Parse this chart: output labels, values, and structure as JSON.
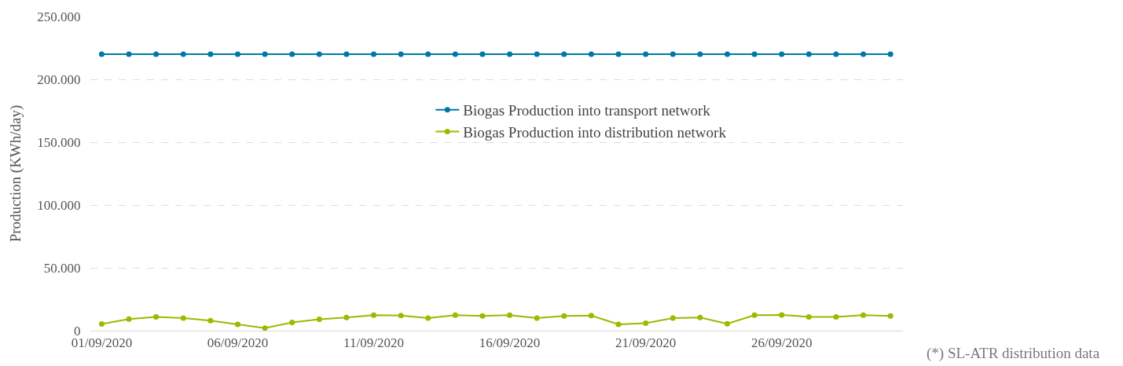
{
  "chart_data": {
    "type": "line",
    "ylabel": "Production (KWh/day)",
    "x": [
      "2020-09-01",
      "2020-09-02",
      "2020-09-03",
      "2020-09-04",
      "2020-09-05",
      "2020-09-06",
      "2020-09-07",
      "2020-09-08",
      "2020-09-09",
      "2020-09-10",
      "2020-09-11",
      "2020-09-12",
      "2020-09-13",
      "2020-09-14",
      "2020-09-15",
      "2020-09-16",
      "2020-09-17",
      "2020-09-18",
      "2020-09-19",
      "2020-09-20",
      "2020-09-21",
      "2020-09-22",
      "2020-09-23",
      "2020-09-24",
      "2020-09-25",
      "2020-09-26",
      "2020-09-27",
      "2020-09-28",
      "2020-09-29",
      "2020-09-30"
    ],
    "series": [
      {
        "name": "Biogas Production into transport network",
        "color": "#0077aa",
        "values": [
          220000,
          220000,
          220000,
          220000,
          220000,
          220000,
          220000,
          220000,
          220000,
          220000,
          220000,
          220000,
          220000,
          220000,
          220000,
          220000,
          220000,
          220000,
          220000,
          220000,
          220000,
          220000,
          220000,
          220000,
          220000,
          220000,
          220000,
          220000,
          220000,
          220000
        ]
      },
      {
        "name": "Biogas Production into distribution network",
        "color": "#99bb00",
        "values": [
          5300,
          9200,
          11000,
          10000,
          8000,
          5000,
          2000,
          6500,
          9000,
          10500,
          12300,
          12000,
          10000,
          12300,
          11700,
          12300,
          10000,
          11700,
          12000,
          5000,
          6000,
          10000,
          10500,
          5500,
          12300,
          12500,
          11000,
          11000,
          12300,
          11700
        ]
      }
    ],
    "xlim": [
      "2020-08-31T14:00",
      "2020-09-30T11:00"
    ],
    "xticks": [
      {
        "value": "2020-09-01",
        "label": "01/09/2020"
      },
      {
        "value": "2020-09-06",
        "label": "06/09/2020"
      },
      {
        "value": "2020-09-11",
        "label": "11/09/2020"
      },
      {
        "value": "2020-09-16",
        "label": "16/09/2020"
      },
      {
        "value": "2020-09-21",
        "label": "21/09/2020"
      },
      {
        "value": "2020-09-26",
        "label": "26/09/2020"
      }
    ],
    "ylim": [
      0,
      250000
    ],
    "yticks": [
      0,
      {
        "value": 50000,
        "label": "50.000"
      },
      {
        "value": 100000,
        "label": "100.000"
      },
      {
        "value": 150000,
        "label": "150.000"
      },
      {
        "value": 200000,
        "label": "200.000"
      },
      {
        "value": 250000,
        "label": "250.000"
      }
    ],
    "grid": "y",
    "legend": "center",
    "marker": "circle",
    "line_style": "solid",
    "annotations": [
      "(*) SL-ATR distribution data"
    ]
  }
}
